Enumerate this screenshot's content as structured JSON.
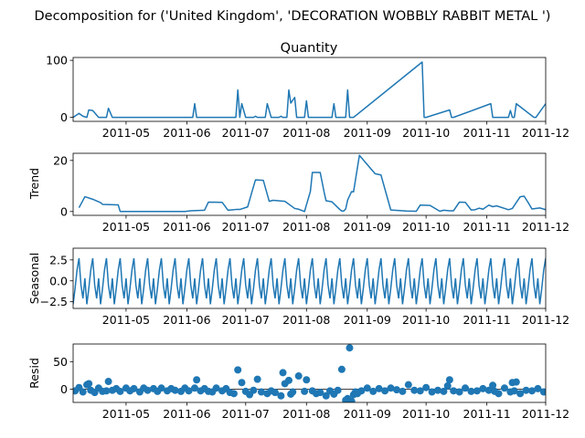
{
  "title": "Decomposition for ('United Kingdom', 'DECORATION WOBBLY RABBIT METAL ')",
  "line_color": "#1f77b4",
  "x_tick_labels": [
    "2011-05",
    "2011-06",
    "2011-07",
    "2011-08",
    "2011-09",
    "2011-10",
    "2011-11",
    "2011-12"
  ],
  "chart_data": [
    {
      "type": "line",
      "panel": "observed",
      "title": "Quantity",
      "ylabel": "",
      "xlim": [
        "2011-04-04",
        "2011-12-01"
      ],
      "ylim": [
        -7,
        105
      ],
      "yticks": [
        0,
        100
      ],
      "ytick_labels": [
        "0",
        "100"
      ],
      "x": [
        "2011-04-04",
        "2011-04-07",
        "2011-04-09",
        "2011-04-11",
        "2011-04-12",
        "2011-04-14",
        "2011-04-17",
        "2011-04-21",
        "2011-04-22",
        "2011-04-24",
        "2011-06-04",
        "2011-06-05",
        "2011-06-06",
        "2011-06-14",
        "2011-06-15",
        "2011-06-20",
        "2011-06-26",
        "2011-06-27",
        "2011-06-28",
        "2011-06-29",
        "2011-07-01",
        "2011-07-05",
        "2011-07-06",
        "2011-07-07",
        "2011-07-11",
        "2011-07-12",
        "2011-07-14",
        "2011-07-17",
        "2011-07-18",
        "2011-07-19",
        "2011-07-20",
        "2011-07-21",
        "2011-07-22",
        "2011-07-23",
        "2011-07-24",
        "2011-07-26",
        "2011-07-27",
        "2011-07-28",
        "2011-07-31",
        "2011-08-01",
        "2011-08-02",
        "2011-08-10",
        "2011-08-11",
        "2011-08-14",
        "2011-08-15",
        "2011-08-16",
        "2011-08-19",
        "2011-08-20",
        "2011-08-21",
        "2011-08-22",
        "2011-08-23",
        "2011-08-24",
        "2011-08-25",
        "2011-09-29",
        "2011-09-30",
        "2011-10-01",
        "2011-10-13",
        "2011-10-14",
        "2011-10-15",
        "2011-11-03",
        "2011-11-04",
        "2011-11-05",
        "2011-11-12",
        "2011-11-13",
        "2011-11-14",
        "2011-11-15",
        "2011-11-16",
        "2011-11-25",
        "2011-11-26",
        "2011-12-01"
      ],
      "y": [
        0,
        7,
        2,
        0,
        13,
        12,
        0,
        0,
        16,
        0,
        0,
        24,
        0,
        0,
        0,
        0,
        0,
        48,
        0,
        24,
        0,
        0,
        2,
        0,
        0,
        24,
        0,
        0,
        0,
        2,
        0,
        0,
        0,
        48,
        25,
        35,
        0,
        0,
        0,
        29,
        0,
        0,
        0,
        0,
        24,
        0,
        0,
        0,
        0,
        48,
        0,
        0,
        0,
        97,
        0,
        0,
        13,
        0,
        0,
        24,
        0,
        0,
        0,
        12,
        0,
        0,
        24,
        0,
        0,
        24
      ]
    },
    {
      "type": "line",
      "panel": "trend",
      "title": "",
      "ylabel": "Trend",
      "xlim": [
        "2011-04-04",
        "2011-12-01"
      ],
      "ylim": [
        -1.5,
        22.8
      ],
      "yticks": [
        0,
        20
      ],
      "ytick_labels": [
        "0",
        "20"
      ],
      "x": [
        "2011-04-07",
        "2011-04-10",
        "2011-04-14",
        "2011-04-18",
        "2011-04-19",
        "2011-04-27",
        "2011-04-28",
        "2011-05-31",
        "2011-06-03",
        "2011-06-10",
        "2011-06-12",
        "2011-06-19",
        "2011-06-22",
        "2011-06-26",
        "2011-06-28",
        "2011-07-02",
        "2011-07-04",
        "2011-07-06",
        "2011-07-10",
        "2011-07-13",
        "2011-07-15",
        "2011-07-21",
        "2011-07-26",
        "2011-07-28",
        "2011-07-31",
        "2011-08-03",
        "2011-08-04",
        "2011-08-08",
        "2011-08-10",
        "2011-08-11",
        "2011-08-14",
        "2011-08-18",
        "2011-08-19",
        "2011-08-20",
        "2011-08-21",
        "2011-08-22",
        "2011-08-24",
        "2011-08-25",
        "2011-08-28",
        "2011-09-05",
        "2011-09-08",
        "2011-09-13",
        "2011-09-21",
        "2011-09-26",
        "2011-09-28",
        "2011-10-03",
        "2011-10-08",
        "2011-10-10",
        "2011-10-13",
        "2011-10-15",
        "2011-10-18",
        "2011-10-21",
        "2011-10-24",
        "2011-10-26",
        "2011-10-28",
        "2011-10-30",
        "2011-11-02",
        "2011-11-04",
        "2011-11-06",
        "2011-11-12",
        "2011-11-14",
        "2011-11-18",
        "2011-11-20",
        "2011-11-22",
        "2011-11-24",
        "2011-11-28",
        "2011-12-01"
      ],
      "y": [
        1.5,
        5.8,
        4.8,
        3.5,
        2.8,
        2.6,
        0,
        0,
        0.3,
        0.5,
        3.7,
        3.6,
        0.5,
        0.8,
        0.8,
        1.8,
        7.2,
        12.4,
        12.2,
        4,
        4.4,
        4,
        1.2,
        0.9,
        0,
        7.9,
        15.3,
        15.3,
        7.6,
        4.2,
        3.8,
        0.8,
        0.2,
        0.2,
        1,
        4.5,
        7.8,
        7.7,
        22,
        14.8,
        14.3,
        0.6,
        0.2,
        0.1,
        2.5,
        2.4,
        0.1,
        0.5,
        0.3,
        0.3,
        3.7,
        3.6,
        0.6,
        0.7,
        1.3,
        0.9,
        2.5,
        1.9,
        2.2,
        0.7,
        1.2,
        5.8,
        6,
        3.6,
        1,
        1.4,
        0.7
      ]
    },
    {
      "type": "line",
      "panel": "seasonal",
      "title": "",
      "ylabel": "Seasonal",
      "xlim": [
        "2011-04-04",
        "2011-12-01"
      ],
      "ylim": [
        -3.3,
        3.9
      ],
      "yticks": [
        -2.5,
        0,
        2.5
      ],
      "ytick_labels": [
        "−2.5",
        "0.0",
        "2.5"
      ],
      "period_days": 7,
      "pattern": [
        -2.8,
        -0.9,
        1.3,
        2.7,
        -0.5,
        -2.1,
        0.3
      ],
      "x_start": "2011-04-04",
      "x_end": "2011-12-01"
    },
    {
      "type": "scatter",
      "panel": "resid",
      "title": "",
      "ylabel": "Resid",
      "xlim": [
        "2011-04-04",
        "2011-12-01"
      ],
      "ylim": [
        -24,
        82
      ],
      "yticks": [
        0,
        50
      ],
      "ytick_labels": [
        "0",
        "50"
      ],
      "baseline": 0,
      "x": [
        "2011-04-05",
        "2011-04-07",
        "2011-04-09",
        "2011-04-11",
        "2011-04-12",
        "2011-04-13",
        "2011-04-15",
        "2011-04-17",
        "2011-04-19",
        "2011-04-21",
        "2011-04-22",
        "2011-04-24",
        "2011-04-26",
        "2011-04-28",
        "2011-05-01",
        "2011-05-03",
        "2011-05-05",
        "2011-05-08",
        "2011-05-10",
        "2011-05-12",
        "2011-05-15",
        "2011-05-17",
        "2011-05-19",
        "2011-05-22",
        "2011-05-24",
        "2011-05-26",
        "2011-05-29",
        "2011-05-31",
        "2011-06-02",
        "2011-06-05",
        "2011-06-06",
        "2011-06-08",
        "2011-06-10",
        "2011-06-12",
        "2011-06-14",
        "2011-06-16",
        "2011-06-19",
        "2011-06-21",
        "2011-06-23",
        "2011-06-25",
        "2011-06-27",
        "2011-06-29",
        "2011-07-01",
        "2011-07-03",
        "2011-07-05",
        "2011-07-07",
        "2011-07-09",
        "2011-07-12",
        "2011-07-14",
        "2011-07-16",
        "2011-07-19",
        "2011-07-20",
        "2011-07-21",
        "2011-07-23",
        "2011-07-24",
        "2011-07-25",
        "2011-07-28",
        "2011-07-31",
        "2011-08-01",
        "2011-08-04",
        "2011-08-06",
        "2011-08-08",
        "2011-08-11",
        "2011-08-13",
        "2011-08-15",
        "2011-08-17",
        "2011-08-19",
        "2011-08-21",
        "2011-08-22",
        "2011-08-23",
        "2011-08-24",
        "2011-08-25",
        "2011-08-26",
        "2011-08-27",
        "2011-08-29",
        "2011-09-01",
        "2011-09-04",
        "2011-09-07",
        "2011-09-10",
        "2011-09-13",
        "2011-09-16",
        "2011-09-19",
        "2011-09-22",
        "2011-09-25",
        "2011-09-28",
        "2011-10-01",
        "2011-10-04",
        "2011-10-07",
        "2011-10-10",
        "2011-10-12",
        "2011-10-13",
        "2011-10-15",
        "2011-10-18",
        "2011-10-21",
        "2011-10-24",
        "2011-10-27",
        "2011-10-30",
        "2011-11-02",
        "2011-11-04",
        "2011-11-05",
        "2011-11-07",
        "2011-11-10",
        "2011-11-13",
        "2011-11-14",
        "2011-11-15",
        "2011-11-16",
        "2011-11-18",
        "2011-11-21",
        "2011-11-24",
        "2011-11-27",
        "2011-11-30"
      ],
      "y": [
        -3,
        3,
        -5,
        8,
        10,
        -2,
        -6,
        2,
        -4,
        -3,
        14,
        -2,
        1,
        -4,
        2,
        -3,
        1,
        -5,
        2,
        -2,
        1,
        -4,
        2,
        -3,
        1,
        -2,
        -4,
        2,
        -3,
        2,
        17,
        -3,
        1,
        -4,
        -5,
        2,
        -3,
        1,
        -6,
        -8,
        35,
        12,
        -4,
        -10,
        -2,
        18,
        -5,
        -8,
        -3,
        -6,
        -12,
        30,
        10,
        16,
        -9,
        -5,
        24,
        -4,
        17,
        -3,
        -8,
        -6,
        -12,
        -3,
        -9,
        -2,
        36,
        -20,
        -17,
        75,
        -22,
        -10,
        -5,
        -8,
        -3,
        2,
        -4,
        1,
        -3,
        2,
        -1,
        -4,
        8,
        -2,
        -3,
        3,
        -5,
        -2,
        -4,
        6,
        17,
        -3,
        -5,
        2,
        -4,
        -3,
        1,
        -2,
        7,
        -4,
        -8,
        2,
        -5,
        12,
        -3,
        13,
        -8,
        -2,
        -3,
        1,
        -5
      ]
    }
  ]
}
